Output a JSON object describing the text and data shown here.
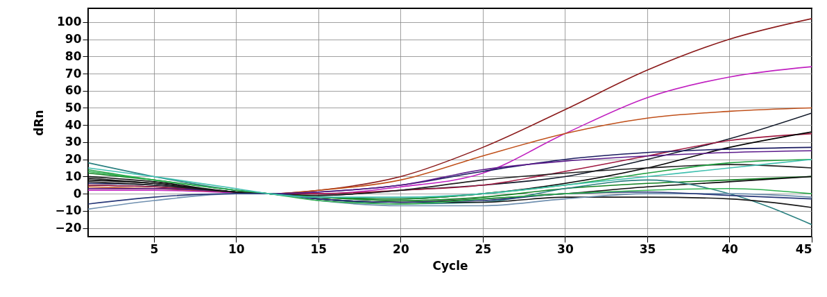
{
  "chart_data": {
    "type": "line",
    "xlabel": "Cycle",
    "ylabel": "dRn",
    "x": [
      1,
      5,
      10,
      12,
      15,
      20,
      25,
      30,
      35,
      40,
      45
    ],
    "xlim": [
      1,
      45
    ],
    "xticks": [
      5,
      10,
      15,
      20,
      25,
      30,
      35,
      40,
      45
    ],
    "ylim": [
      -25,
      108
    ],
    "yticks": [
      -20,
      -10,
      0,
      10,
      20,
      30,
      40,
      50,
      60,
      70,
      80,
      90,
      100
    ],
    "grid": true,
    "marker": "none",
    "line_style": "solid",
    "series": [
      {
        "color": "#8b1a1a",
        "values": [
          3,
          3,
          1,
          0,
          2,
          10,
          27,
          49,
          72,
          90,
          102
        ]
      },
      {
        "color": "#c020c0",
        "values": [
          2,
          2,
          0.5,
          0,
          0,
          4,
          12,
          35,
          56,
          68,
          74
        ]
      },
      {
        "color": "#c0501a",
        "values": [
          4,
          3,
          1,
          0,
          2,
          8,
          22,
          35,
          44,
          48,
          50
        ]
      },
      {
        "color": "#101828",
        "values": [
          5,
          4,
          1,
          0,
          -1,
          2,
          5,
          10,
          20,
          32,
          47
        ]
      },
      {
        "color": "#a01840",
        "values": [
          5,
          4,
          1,
          0,
          0,
          2,
          5,
          13,
          22,
          31,
          35
        ]
      },
      {
        "color": "#000000",
        "values": [
          8,
          6,
          1,
          0,
          -2,
          -3,
          0,
          6,
          15,
          27,
          36
        ]
      },
      {
        "color": "#1a1a60",
        "values": [
          6,
          5,
          1,
          0,
          1,
          5,
          13,
          20,
          24,
          26,
          27
        ]
      },
      {
        "color": "#5a1a8a",
        "values": [
          3,
          3,
          1,
          0,
          1,
          5,
          14,
          19,
          22,
          24,
          25
        ]
      },
      {
        "color": "#202020",
        "values": [
          7,
          5,
          1,
          0,
          -1,
          2,
          8,
          12,
          15,
          17,
          15
        ]
      },
      {
        "color": "#20a040",
        "values": [
          14,
          8,
          2,
          0,
          -2,
          -3,
          0,
          5,
          12,
          18,
          20
        ]
      },
      {
        "color": "#108020",
        "values": [
          12,
          8,
          2,
          0,
          -2,
          -4,
          -2,
          3,
          6,
          8,
          10
        ]
      },
      {
        "color": "#0a0a0a",
        "values": [
          10,
          7,
          1,
          0,
          -3,
          -5,
          -3,
          0,
          4,
          7,
          10
        ]
      },
      {
        "color": "#2a8080",
        "values": [
          18,
          10,
          2,
          0,
          -3,
          -6,
          -5,
          3,
          8,
          0,
          -18
        ]
      },
      {
        "color": "#181818",
        "values": [
          9,
          6,
          1,
          0,
          -3,
          -5,
          -5,
          -2,
          -2,
          -3,
          -8
        ]
      },
      {
        "color": "#7090b0",
        "values": [
          -9,
          -4,
          0,
          0,
          -4,
          -7,
          -7,
          -3,
          0,
          0,
          -2
        ]
      },
      {
        "color": "#283878",
        "values": [
          -6,
          -2,
          0,
          0,
          -3,
          -5,
          -4,
          0,
          1,
          -1,
          -3
        ]
      },
      {
        "color": "#30b050",
        "values": [
          13,
          8,
          2,
          0,
          -4,
          -6,
          -3,
          0,
          2,
          3,
          0
        ]
      },
      {
        "color": "#40c0b0",
        "values": [
          15,
          10,
          3,
          0,
          -2,
          -2,
          0,
          5,
          10,
          15,
          20
        ]
      }
    ]
  }
}
